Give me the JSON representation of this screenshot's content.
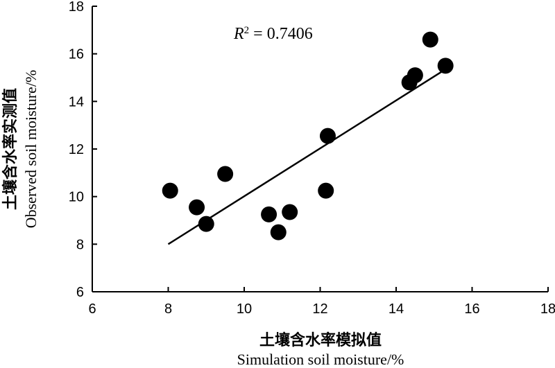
{
  "chart_data": {
    "type": "scatter",
    "xlim": [
      6,
      18
    ],
    "ylim": [
      6,
      18
    ],
    "xticks": [
      "6",
      "8",
      "10",
      "12",
      "14",
      "16",
      "18"
    ],
    "yticks": [
      "6",
      "8",
      "10",
      "12",
      "14",
      "16",
      "18"
    ],
    "xlabel_cn": "土壤含水率模拟值",
    "xlabel_en": "Simulation soil moisture/%",
    "ylabel_cn": "土壤含水率实测值",
    "ylabel_en": "Observed soil moisture/%",
    "annotation": {
      "r2_symbol": "R",
      "r2_exp": "2",
      "r2_text": " = 0.7406"
    },
    "grid": false,
    "points": [
      {
        "x": 8.05,
        "y": 10.25
      },
      {
        "x": 8.75,
        "y": 9.55
      },
      {
        "x": 9.0,
        "y": 8.85
      },
      {
        "x": 9.5,
        "y": 10.95
      },
      {
        "x": 10.65,
        "y": 9.25
      },
      {
        "x": 10.9,
        "y": 8.5
      },
      {
        "x": 11.2,
        "y": 9.35
      },
      {
        "x": 12.15,
        "y": 10.25
      },
      {
        "x": 12.2,
        "y": 12.55
      },
      {
        "x": 14.35,
        "y": 14.8
      },
      {
        "x": 14.5,
        "y": 15.1
      },
      {
        "x": 14.9,
        "y": 16.6
      },
      {
        "x": 15.3,
        "y": 15.5
      }
    ],
    "trendline": {
      "x": [
        8.0,
        15.2
      ],
      "y": [
        8.0,
        15.25
      ]
    }
  }
}
